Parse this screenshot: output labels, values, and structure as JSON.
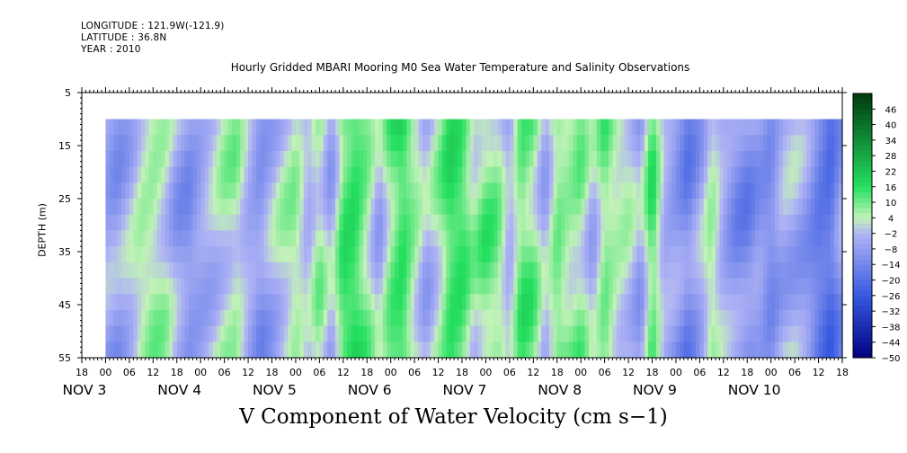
{
  "header": {
    "longitude": "LONGITUDE : 121.9W(-121.9)",
    "latitude": "LATITUDE : 36.8N",
    "year": "YEAR : 2010"
  },
  "plot_title": "Hourly Gridded MBARI Mooring M0 Sea Water Temperature and Salinity Observations",
  "variable_title": "V Component of Water Velocity (cm s−1)",
  "chart_data": {
    "type": "heatmap",
    "title": "Hourly Gridded MBARI Mooring M0 Sea Water Temperature and Salinity Observations",
    "xlabel": "",
    "ylabel": "DEPTH (m)",
    "ylim": [
      55,
      5
    ],
    "y_ticks": [
      5,
      15,
      25,
      35,
      45,
      55
    ],
    "data_depth_range_m": [
      10,
      55
    ],
    "x_hour_tick_labels": [
      "18",
      "00",
      "06",
      "12",
      "18",
      "00",
      "06",
      "12",
      "18",
      "00",
      "06",
      "12",
      "18",
      "00",
      "06",
      "12",
      "18",
      "00",
      "06",
      "12",
      "18",
      "00",
      "06",
      "12",
      "18",
      "00",
      "06",
      "12",
      "18",
      "00",
      "06",
      "12",
      "18"
    ],
    "x_day_labels": [
      {
        "text": "NOV  3",
        "hour": 24
      },
      {
        "text": "NOV  4",
        "hour": 48
      },
      {
        "text": "NOV  5",
        "hour": 72
      },
      {
        "text": "NOV  6",
        "hour": 96
      },
      {
        "text": "NOV  7",
        "hour": 120
      },
      {
        "text": "NOV  8",
        "hour": 144
      },
      {
        "text": "NOV  9",
        "hour": 168
      },
      {
        "text": "NOV 10",
        "hour": 192
      }
    ],
    "x_start_hour": 18,
    "data_start_hour": 24,
    "x_end_hour": 210,
    "colorbar": {
      "levels": [
        -50,
        -44,
        -38,
        -32,
        -26,
        -20,
        -14,
        -8,
        -2,
        4,
        10,
        16,
        22,
        28,
        34,
        40,
        46
      ],
      "tick_labels": [
        "46",
        "40",
        "34",
        "28",
        "22",
        "16",
        "10",
        "4",
        "−2",
        "−8",
        "−14",
        "−20",
        "−26",
        "−32",
        "−38",
        "−44",
        "−50"
      ],
      "range": [
        -50,
        52
      ]
    },
    "column_profile": [
      {
        "hour": 24,
        "v": -6
      },
      {
        "hour": 27,
        "v": -8
      },
      {
        "hour": 30,
        "v": -3
      },
      {
        "hour": 33,
        "v": 4
      },
      {
        "hour": 36,
        "v": 6
      },
      {
        "hour": 39,
        "v": 3
      },
      {
        "hour": 42,
        "v": -6
      },
      {
        "hour": 45,
        "v": -10
      },
      {
        "hour": 48,
        "v": -6
      },
      {
        "hour": 51,
        "v": -2
      },
      {
        "hour": 54,
        "v": 3
      },
      {
        "hour": 57,
        "v": 5
      },
      {
        "hour": 60,
        "v": -4
      },
      {
        "hour": 63,
        "v": -10
      },
      {
        "hour": 66,
        "v": -4
      },
      {
        "hour": 69,
        "v": 2
      },
      {
        "hour": 72,
        "v": 6
      },
      {
        "hour": 75,
        "v": -3
      },
      {
        "hour": 78,
        "v": 6
      },
      {
        "hour": 81,
        "v": -5
      },
      {
        "hour": 84,
        "v": 14
      },
      {
        "hour": 87,
        "v": 16
      },
      {
        "hour": 90,
        "v": 8
      },
      {
        "hour": 93,
        "v": -4
      },
      {
        "hour": 96,
        "v": 10
      },
      {
        "hour": 99,
        "v": 16
      },
      {
        "hour": 102,
        "v": 6
      },
      {
        "hour": 105,
        "v": -4
      },
      {
        "hour": 108,
        "v": 4
      },
      {
        "hour": 111,
        "v": 15
      },
      {
        "hour": 114,
        "v": 14
      },
      {
        "hour": 117,
        "v": 4
      },
      {
        "hour": 120,
        "v": 10
      },
      {
        "hour": 123,
        "v": 8
      },
      {
        "hour": 126,
        "v": -4
      },
      {
        "hour": 129,
        "v": 12
      },
      {
        "hour": 132,
        "v": 9
      },
      {
        "hour": 135,
        "v": -4
      },
      {
        "hour": 138,
        "v": 10
      },
      {
        "hour": 141,
        "v": 6
      },
      {
        "hour": 144,
        "v": 8
      },
      {
        "hour": 147,
        "v": -3
      },
      {
        "hour": 150,
        "v": 10
      },
      {
        "hour": 153,
        "v": 4
      },
      {
        "hour": 156,
        "v": 2
      },
      {
        "hour": 159,
        "v": -6
      },
      {
        "hour": 162,
        "v": 14
      },
      {
        "hour": 165,
        "v": -4
      },
      {
        "hour": 168,
        "v": -8
      },
      {
        "hour": 171,
        "v": -14
      },
      {
        "hour": 174,
        "v": -6
      },
      {
        "hour": 177,
        "v": 6
      },
      {
        "hour": 180,
        "v": -4
      },
      {
        "hour": 183,
        "v": -10
      },
      {
        "hour": 186,
        "v": -12
      },
      {
        "hour": 189,
        "v": -8
      },
      {
        "hour": 192,
        "v": -12
      },
      {
        "hour": 195,
        "v": -4
      },
      {
        "hour": 198,
        "v": -4
      },
      {
        "hour": 201,
        "v": -8
      },
      {
        "hour": 204,
        "v": -16
      },
      {
        "hour": 207,
        "v": -20
      },
      {
        "hour": 210,
        "v": -8
      }
    ],
    "colors": {
      "neg_strong": "#000080",
      "neg_mid": "#3559e0",
      "neg_light": "#b0b4f5",
      "pos_light": "#c2f2b8",
      "pos_mid": "#25e060",
      "pos_strong": "#003a0e",
      "empty": "#ffffff"
    },
    "grid": false
  }
}
